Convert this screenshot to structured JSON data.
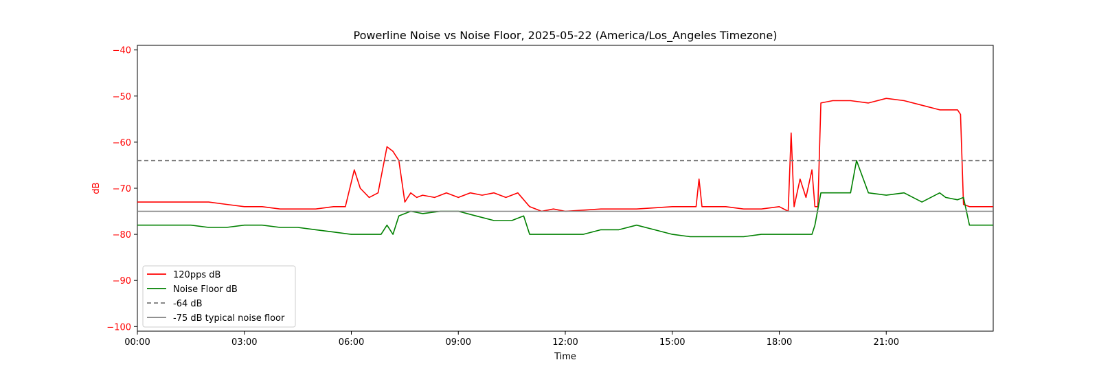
{
  "chart_data": {
    "type": "line",
    "title": "Powerline Noise vs Noise Floor, 2025-05-22 (America/Los_Angeles Timezone)",
    "xlabel": "Time",
    "ylabel": "dB",
    "xlim": [
      "00:00",
      "24:00"
    ],
    "ylim": [
      -101,
      -39
    ],
    "x_ticks": [
      "00:00",
      "03:00",
      "06:00",
      "09:00",
      "12:00",
      "15:00",
      "18:00",
      "21:00"
    ],
    "y_ticks": [
      -40,
      -50,
      -60,
      -70,
      -80,
      -90,
      -100
    ],
    "grid": false,
    "legend_position": "lower-left",
    "series": [
      {
        "name": "120pps dB",
        "color": "#ff0000",
        "style": "solid",
        "x": [
          "00:00",
          "00:30",
          "01:00",
          "01:30",
          "02:00",
          "02:30",
          "03:00",
          "03:30",
          "04:00",
          "04:30",
          "05:00",
          "05:30",
          "05:50",
          "06:05",
          "06:15",
          "06:30",
          "06:45",
          "07:00",
          "07:10",
          "07:20",
          "07:30",
          "07:40",
          "07:50",
          "08:00",
          "08:20",
          "08:40",
          "09:00",
          "09:20",
          "09:40",
          "10:00",
          "10:20",
          "10:40",
          "11:00",
          "11:20",
          "11:40",
          "12:00",
          "13:00",
          "14:00",
          "15:00",
          "15:40",
          "15:45",
          "15:50",
          "16:30",
          "17:00",
          "17:30",
          "18:00",
          "18:15",
          "18:20",
          "18:25",
          "18:35",
          "18:45",
          "18:55",
          "19:00",
          "19:05",
          "19:10",
          "19:30",
          "20:00",
          "20:30",
          "21:00",
          "21:30",
          "22:00",
          "22:30",
          "23:00",
          "23:05",
          "23:10",
          "23:20",
          "24:00"
        ],
        "values": [
          -73,
          -73,
          -73,
          -73,
          -73,
          -73.5,
          -74,
          -74,
          -74.5,
          -74.5,
          -74.5,
          -74,
          -74,
          -66,
          -70,
          -72,
          -71,
          -61,
          -62,
          -64,
          -73,
          -71,
          -72,
          -71.5,
          -72,
          -71,
          -72,
          -71,
          -71.5,
          -71,
          -72,
          -71,
          -74,
          -75,
          -74.5,
          -75,
          -74.5,
          -74.5,
          -74,
          -74,
          -68,
          -74,
          -74,
          -74.5,
          -74.5,
          -74,
          -75,
          -58,
          -74,
          -68,
          -72,
          -66,
          -74,
          -74,
          -51.5,
          -51,
          -51,
          -51.5,
          -50.5,
          -51,
          -52,
          -53,
          -53,
          -54,
          -73.5,
          -74,
          -74
        ]
      },
      {
        "name": "Noise Floor dB",
        "color": "#008000",
        "style": "solid",
        "x": [
          "00:00",
          "00:20",
          "00:40",
          "01:00",
          "01:30",
          "02:00",
          "02:30",
          "03:00",
          "03:30",
          "04:00",
          "04:30",
          "05:00",
          "05:30",
          "06:00",
          "06:30",
          "06:50",
          "07:00",
          "07:10",
          "07:20",
          "07:40",
          "08:00",
          "08:30",
          "09:00",
          "09:30",
          "10:00",
          "10:30",
          "10:50",
          "11:00",
          "11:30",
          "12:00",
          "12:30",
          "13:00",
          "13:30",
          "14:00",
          "14:30",
          "15:00",
          "15:30",
          "16:00",
          "16:30",
          "17:00",
          "17:30",
          "18:00",
          "18:30",
          "18:55",
          "19:00",
          "19:10",
          "19:30",
          "20:00",
          "20:10",
          "20:30",
          "21:00",
          "21:30",
          "22:00",
          "22:30",
          "22:40",
          "23:00",
          "23:10",
          "23:20",
          "24:00"
        ],
        "values": [
          -78,
          -78,
          -78,
          -78,
          -78,
          -78.5,
          -78.5,
          -78,
          -78,
          -78.5,
          -78.5,
          -79,
          -79.5,
          -80,
          -80,
          -80,
          -78,
          -80,
          -76,
          -75,
          -75.5,
          -75,
          -75,
          -76,
          -77,
          -77,
          -76,
          -80,
          -80,
          -80,
          -80,
          -79,
          -79,
          -78,
          -79,
          -80,
          -80.5,
          -80.5,
          -80.5,
          -80.5,
          -80,
          -80,
          -80,
          -80,
          -78,
          -71,
          -71,
          -71,
          -64,
          -71,
          -71.5,
          -71,
          -73,
          -71,
          -72,
          -72.5,
          -72,
          -78,
          -78
        ]
      },
      {
        "name": "-64 dB",
        "color": "#777777",
        "style": "dashed",
        "x": [
          "00:00",
          "24:00"
        ],
        "values": [
          -64,
          -64
        ]
      },
      {
        "name": "-75 dB typical noise floor",
        "color": "#808080",
        "style": "solid",
        "x": [
          "00:00",
          "24:00"
        ],
        "values": [
          -75,
          -75
        ]
      }
    ]
  },
  "colors": {
    "ylabel": "#ff0000",
    "axes": "#000000"
  }
}
